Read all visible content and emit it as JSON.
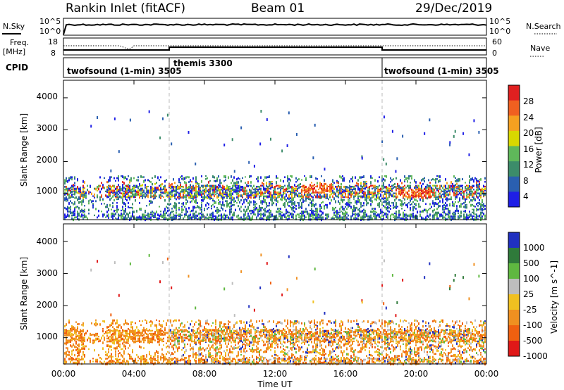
{
  "header": {
    "radar": "Rankin Inlet (fitACF)",
    "beam": "Beam 01",
    "date": "29/Dec/2019"
  },
  "noise_panel": {
    "left_label": "N.Sky",
    "right_label": "N.Search",
    "left_ticks": [
      "10^5",
      "10^0"
    ],
    "right_ticks": [
      "10^5",
      "10^0"
    ]
  },
  "freq_panel": {
    "left_label_1": "Freq.",
    "left_label_2": "[MHz]",
    "left_ticks": [
      "18",
      "8"
    ],
    "right_ticks": [
      "60",
      "0"
    ],
    "right_label": "Nave"
  },
  "cpid": {
    "label": "CPID",
    "segments": [
      "twofsound (1-min) 3505",
      "themis 3300",
      "twofsound (1-min) 3505"
    ]
  },
  "x_axis": {
    "label": "Time UT",
    "ticks": [
      "00:00",
      "04:00",
      "08:00",
      "12:00",
      "16:00",
      "20:00",
      "00:00"
    ]
  },
  "chart_data": [
    {
      "type": "heatmap",
      "name": "power",
      "ylabel": "Slant Range [km]",
      "yticks": [
        "1000",
        "2000",
        "3000",
        "4000"
      ],
      "ylim": [
        180,
        4550
      ],
      "xlim_hours": [
        0,
        24
      ],
      "colorbar": {
        "label": "Power [dB]",
        "ticks": [
          "4",
          "8",
          "12",
          "16",
          "20",
          "24",
          "28"
        ],
        "colors": [
          "#1e1ee6",
          "#2a5fb0",
          "#3c8c6a",
          "#5fb85a",
          "#d8d800",
          "#f5a020",
          "#f06020",
          "#e02020"
        ]
      },
      "features": [
        {
          "t_start": 0.0,
          "t_end": 24.0,
          "range_km": 1050,
          "description": "main echo band"
        },
        {
          "t_start": 13.0,
          "t_end": 14.5,
          "range_km": 1200,
          "level_db": 24
        }
      ]
    },
    {
      "type": "heatmap",
      "name": "velocity",
      "ylabel": "Slant Range [km]",
      "yticks": [
        "1000",
        "2000",
        "3000",
        "4000"
      ],
      "ylim": [
        180,
        4550
      ],
      "xlim_hours": [
        0,
        24
      ],
      "colorbar": {
        "label": "Velocity [m s^-1]",
        "ticks": [
          "1000",
          "500",
          "100",
          "25",
          "-25",
          "-100",
          "-500",
          "-1000"
        ],
        "colors": [
          "#2030c0",
          "#2f7a3a",
          "#5fb840",
          "#bdbdbd",
          "#f0c020",
          "#f09020",
          "#f06010",
          "#e01818"
        ]
      }
    }
  ],
  "colors": {
    "background": "#ffffff",
    "axis": "#000000",
    "dashed_marker": "#bbbbbb"
  }
}
